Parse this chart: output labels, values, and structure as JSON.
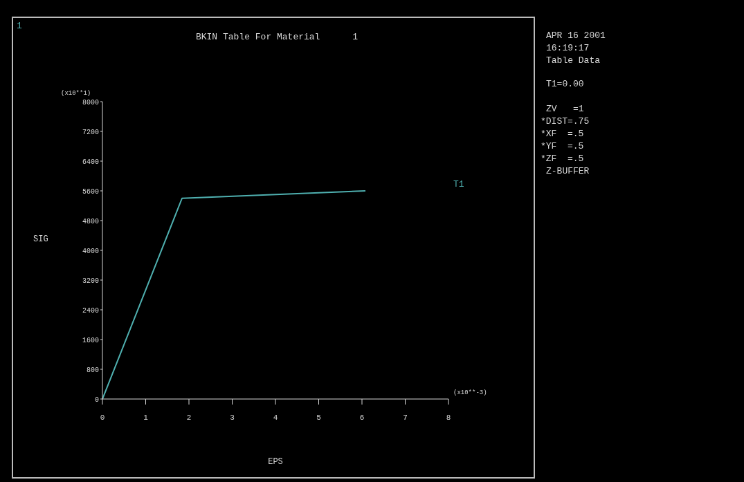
{
  "chart_data": {
    "type": "line",
    "title": "BKIN Table For Material      1",
    "xlabel": "EPS",
    "ylabel": "SIG",
    "annotations": [
      "1",
      "(x10**1)",
      "(x10**-3)",
      "APR 16 2001",
      "16:19:17",
      "Table Data",
      "T1=0.00",
      "ZV   =1",
      "*DIST=.75",
      "*XF  =.5",
      "*YF  =.5",
      "*ZF  =.5",
      "Z-BUFFER"
    ],
    "x": [
      0,
      1.84,
      6.08
    ],
    "series": [
      {
        "name": "T1",
        "color": "#4fb0b0",
        "values": [
          0,
          5400,
          5600
        ]
      }
    ],
    "xlim": [
      0,
      8
    ],
    "xticks": [
      0,
      1,
      2,
      3,
      4,
      5,
      6,
      7,
      8
    ],
    "ylim": [
      0,
      8000
    ],
    "yticks": [
      0,
      800,
      1600,
      2400,
      3200,
      4000,
      4800,
      5600,
      6400,
      7200,
      8000
    ],
    "grid": false,
    "legend": false,
    "marker": "none",
    "line_style": "solid"
  }
}
